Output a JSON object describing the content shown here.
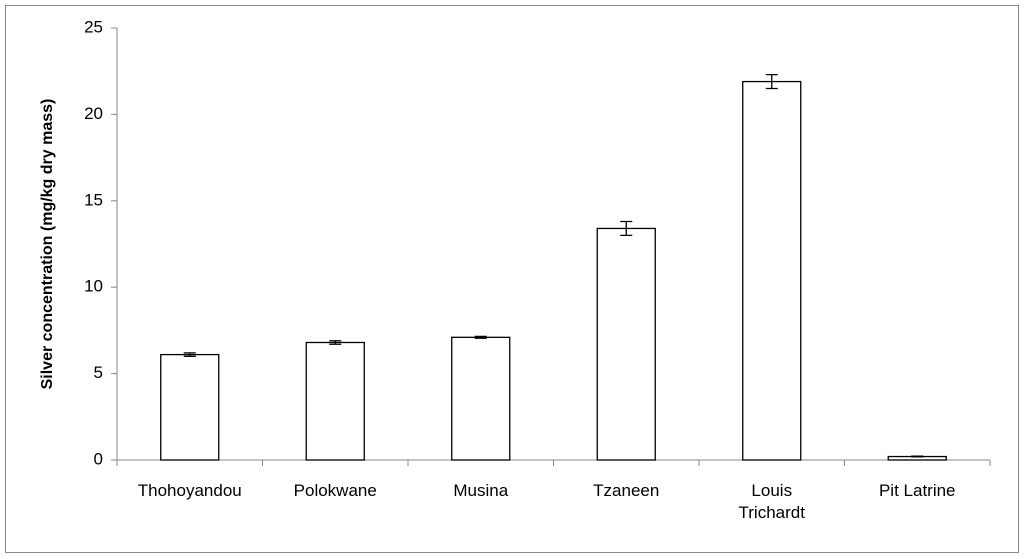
{
  "chart_data": {
    "type": "bar",
    "y_label": "Silver concentration (mg/kg dry mass)",
    "categories": [
      "Thohoyandou",
      "Polokwane",
      "Musina",
      "Tzaneen",
      "Louis\nTrichardt",
      "Pit Latrine"
    ],
    "values": [
      6.1,
      6.8,
      7.1,
      13.4,
      21.9,
      0.2
    ],
    "errors": [
      0.1,
      0.1,
      0.05,
      0.4,
      0.4,
      0.02
    ],
    "color": "#ffffff",
    "ylim": [
      0,
      25
    ],
    "yticks": [
      0,
      5,
      10,
      15,
      20,
      25
    ],
    "grid": false
  }
}
